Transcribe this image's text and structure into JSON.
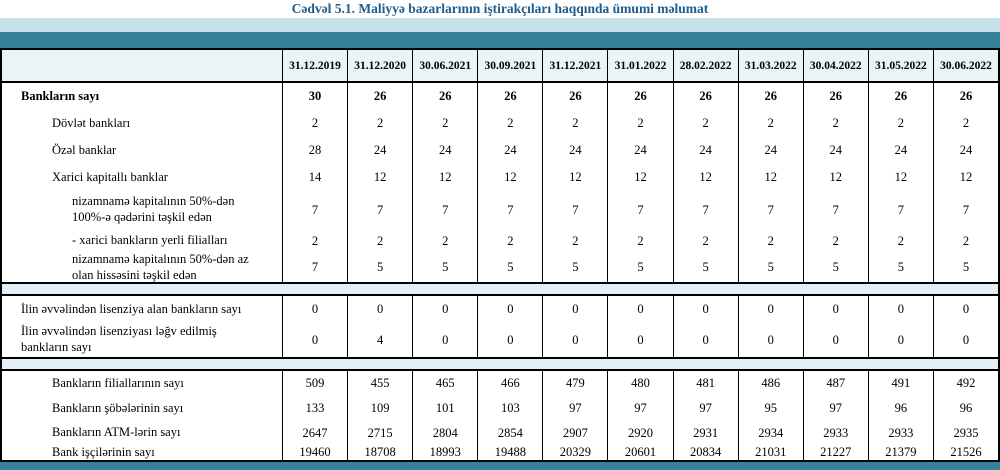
{
  "title": "Cədvəl 5.1. Maliyyə bazarlarının iştirakçıları haqqında ümumi məlumat",
  "colors": {
    "title_text": "#1d5c8c",
    "band_light": "#c6e2ea",
    "band_teal": "#35839a",
    "header_row_bg": "#e9f4f7",
    "separator_bg": "#e2f0f5",
    "table_border": "#000000"
  },
  "table": {
    "columns": [
      "31.12.2019",
      "31.12.2020",
      "30.06.2021",
      "30.09.2021",
      "31.12.2021",
      "31.01.2022",
      "28.02.2022",
      "31.03.2022",
      "30.04.2022",
      "31.05.2022",
      "30.06.2022"
    ],
    "sections": [
      {
        "name": "banks-count",
        "rows": [
          {
            "label": "Bankların sayı",
            "indent": 0,
            "bold": true,
            "values": [
              "30",
              "26",
              "26",
              "26",
              "26",
              "26",
              "26",
              "26",
              "26",
              "26",
              "26"
            ]
          },
          {
            "label": "Dövlət bankları",
            "indent": 1,
            "bold": false,
            "values": [
              "2",
              "2",
              "2",
              "2",
              "2",
              "2",
              "2",
              "2",
              "2",
              "2",
              "2"
            ]
          },
          {
            "label": "Özəl banklar",
            "indent": 1,
            "bold": false,
            "values": [
              "28",
              "24",
              "24",
              "24",
              "24",
              "24",
              "24",
              "24",
              "24",
              "24",
              "24"
            ]
          },
          {
            "label": "Xarici kapitallı banklar",
            "indent": 1,
            "bold": false,
            "values": [
              "14",
              "12",
              "12",
              "12",
              "12",
              "12",
              "12",
              "12",
              "12",
              "12",
              "12"
            ]
          },
          {
            "label": "nizamnamə kapitalının 50%-dən 100%-ə qədərini təşkil edən",
            "indent": 2,
            "bold": false,
            "values": [
              "7",
              "7",
              "7",
              "7",
              "7",
              "7",
              "7",
              "7",
              "7",
              "7",
              "7"
            ]
          },
          {
            "label": "- xarici bankların yerli filialları",
            "indent": 2,
            "bold": false,
            "values": [
              "2",
              "2",
              "2",
              "2",
              "2",
              "2",
              "2",
              "2",
              "2",
              "2",
              "2"
            ]
          },
          {
            "label": "nizamnamə kapitalının 50%-dən az olan hissəsini təşkil edən",
            "indent": 2,
            "bold": false,
            "values": [
              "7",
              "5",
              "5",
              "5",
              "5",
              "5",
              "5",
              "5",
              "5",
              "5",
              "5"
            ]
          }
        ]
      },
      {
        "name": "licenses",
        "rows": [
          {
            "label": "İlin əvvəlindən lisenziya alan bankların sayı",
            "indent": 0,
            "bold": false,
            "values": [
              "0",
              "0",
              "0",
              "0",
              "0",
              "0",
              "0",
              "0",
              "0",
              "0",
              "0"
            ]
          },
          {
            "label": "İlin əvvəlindən lisenziyası ləğv edilmiş bankların sayı",
            "indent": 0,
            "bold": false,
            "values": [
              "0",
              "4",
              "0",
              "0",
              "0",
              "0",
              "0",
              "0",
              "0",
              "0",
              "0"
            ]
          }
        ]
      },
      {
        "name": "bank-infrastructure",
        "rows": [
          {
            "label": "Bankların filiallarının sayı",
            "indent": 1,
            "bold": false,
            "values": [
              "509",
              "455",
              "465",
              "466",
              "479",
              "480",
              "481",
              "486",
              "487",
              "491",
              "492"
            ]
          },
          {
            "label": "Bankların şöbələrinin sayı",
            "indent": 1,
            "bold": false,
            "values": [
              "133",
              "109",
              "101",
              "103",
              "97",
              "97",
              "97",
              "95",
              "97",
              "96",
              "96"
            ]
          },
          {
            "label": "Bankların ATM-lərin sayı",
            "indent": 1,
            "bold": false,
            "values": [
              "2647",
              "2715",
              "2804",
              "2854",
              "2907",
              "2920",
              "2931",
              "2934",
              "2933",
              "2933",
              "2935"
            ]
          },
          {
            "label": "Bank işçilərinin sayı",
            "indent": 1,
            "bold": false,
            "values": [
              "19460",
              "18708",
              "18993",
              "19488",
              "20329",
              "20601",
              "20834",
              "21031",
              "21227",
              "21379",
              "21526"
            ]
          }
        ]
      }
    ]
  }
}
